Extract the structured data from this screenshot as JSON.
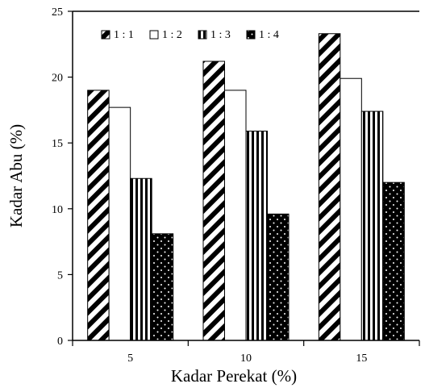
{
  "chart_data": {
    "type": "bar",
    "categories": [
      "5",
      "10",
      "15"
    ],
    "series": [
      {
        "name": "1 : 1",
        "values": [
          19.0,
          21.2,
          23.3
        ],
        "pattern": "diagonal-stripes"
      },
      {
        "name": "1 : 2",
        "values": [
          17.7,
          19.0,
          19.9
        ],
        "pattern": "solid-white"
      },
      {
        "name": "1 : 3",
        "values": [
          12.3,
          15.9,
          17.4
        ],
        "pattern": "vertical-stripes"
      },
      {
        "name": "1 : 4",
        "values": [
          8.1,
          9.6,
          12.0
        ],
        "pattern": "black-dotted"
      }
    ],
    "xlabel": "Kadar Perekat (%)",
    "ylabel": "Kadar  Abu (%)",
    "ylim": [
      0,
      25
    ],
    "yticks": [
      "0",
      "5",
      "10",
      "15",
      "20",
      "25"
    ],
    "grid": false,
    "legend": "top-inside"
  }
}
